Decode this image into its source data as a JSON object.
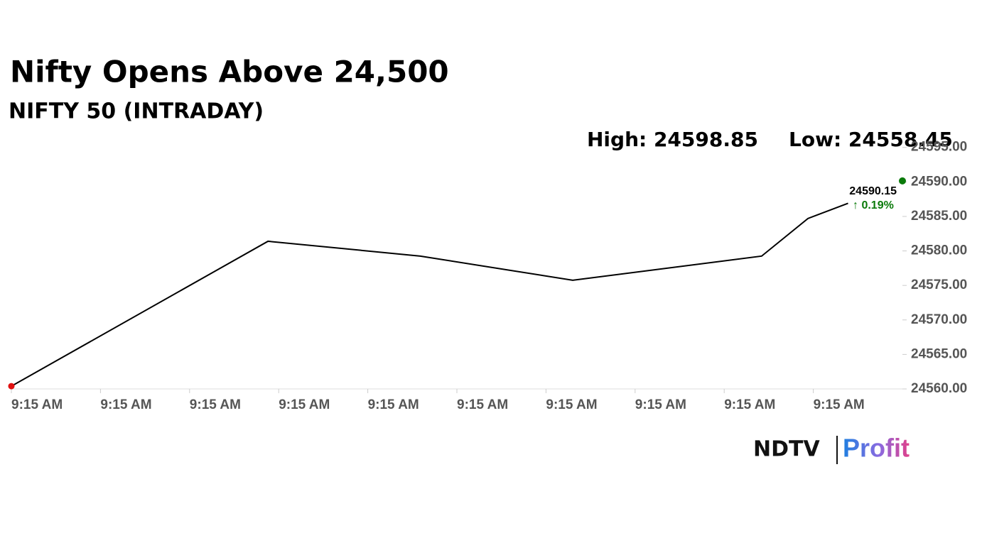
{
  "chart_data": {
    "type": "line",
    "title": "Nifty Opens Above 24,500",
    "subtitle": "NIFTY 50 (INTRADAY)",
    "annotations": [
      "High: 24598.85",
      "Low: 24558.45"
    ],
    "x": [
      0,
      2.88,
      4.59,
      6.3,
      8.42,
      8.94,
      9.39
    ],
    "series": [
      {
        "name": "NIFTY 50",
        "color": "#000000",
        "values": [
          24560.4,
          24581.4,
          24579.25,
          24575.75,
          24579.25,
          24584.7,
          24586.9
        ]
      }
    ],
    "last": {
      "x": 10,
      "value": 24590.15,
      "color": "#0a7a0a",
      "change_label": "↑ 0.19%"
    },
    "start_color": "#e01010",
    "xlim": [
      0,
      10
    ],
    "xticks": [
      {
        "value": 0,
        "label": "9:15 AM"
      },
      {
        "value": 1,
        "label": "9:15 AM"
      },
      {
        "value": 2,
        "label": "9:15 AM"
      },
      {
        "value": 3,
        "label": "9:15 AM"
      },
      {
        "value": 4,
        "label": "9:15 AM"
      },
      {
        "value": 5,
        "label": "9:15 AM"
      },
      {
        "value": 6,
        "label": "9:15 AM"
      },
      {
        "value": 7,
        "label": "9:15 AM"
      },
      {
        "value": 8,
        "label": "9:15 AM"
      },
      {
        "value": 9,
        "label": "9:15 AM"
      }
    ],
    "ylim": [
      24560,
      24596
    ],
    "yticks": [
      {
        "value": 24560,
        "label": "24560.00"
      },
      {
        "value": 24565,
        "label": "24565.00"
      },
      {
        "value": 24570,
        "label": "24570.00"
      },
      {
        "value": 24575,
        "label": "24575.00"
      },
      {
        "value": 24580,
        "label": "24580.00"
      },
      {
        "value": 24585,
        "label": "24585.00"
      },
      {
        "value": 24590,
        "label": "24590.00"
      },
      {
        "value": 24595,
        "label": "24595.00"
      }
    ],
    "brand": {
      "left": "NDTV",
      "right": "Profit"
    }
  }
}
